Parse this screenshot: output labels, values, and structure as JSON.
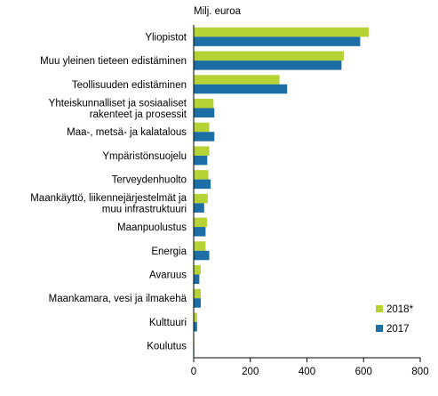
{
  "chart_data": {
    "type": "bar",
    "orientation": "horizontal",
    "unit_label": "Milj. euroa",
    "categories": [
      [
        "Yliopistot"
      ],
      [
        "Muu yleinen tieteen edistäminen"
      ],
      [
        "Teollisuuden edistäminen"
      ],
      [
        "Yhteiskunnalliset ja sosiaaliset",
        "rakenteet ja prosessit"
      ],
      [
        "Maa-, metsä- ja kalatalous"
      ],
      [
        "Ympäristönsuojelu"
      ],
      [
        "Terveydenhuolto"
      ],
      [
        "Maankäyttö, liikennejärjestelmät ja",
        "muu infrastruktuuri"
      ],
      [
        "Maanpuolustus"
      ],
      [
        "Energia"
      ],
      [
        "Avaruus"
      ],
      [
        "Maankamara, vesi ja ilmakehä"
      ],
      [
        "Kulttuuri"
      ],
      [
        "Koulutus"
      ]
    ],
    "series": [
      {
        "name": "2018*",
        "color": "#b5d334",
        "values": [
          618,
          530,
          303,
          70,
          55,
          55,
          52,
          50,
          47,
          42,
          25,
          25,
          12,
          2
        ]
      },
      {
        "name": "2017",
        "color": "#1c6ea4",
        "values": [
          588,
          522,
          330,
          73,
          73,
          48,
          60,
          37,
          42,
          55,
          20,
          25,
          12,
          2
        ]
      }
    ],
    "xlim": [
      0,
      800
    ],
    "xticks": [
      0,
      200,
      400,
      600,
      800
    ],
    "grid": false,
    "legend_position": "bottom-right"
  }
}
